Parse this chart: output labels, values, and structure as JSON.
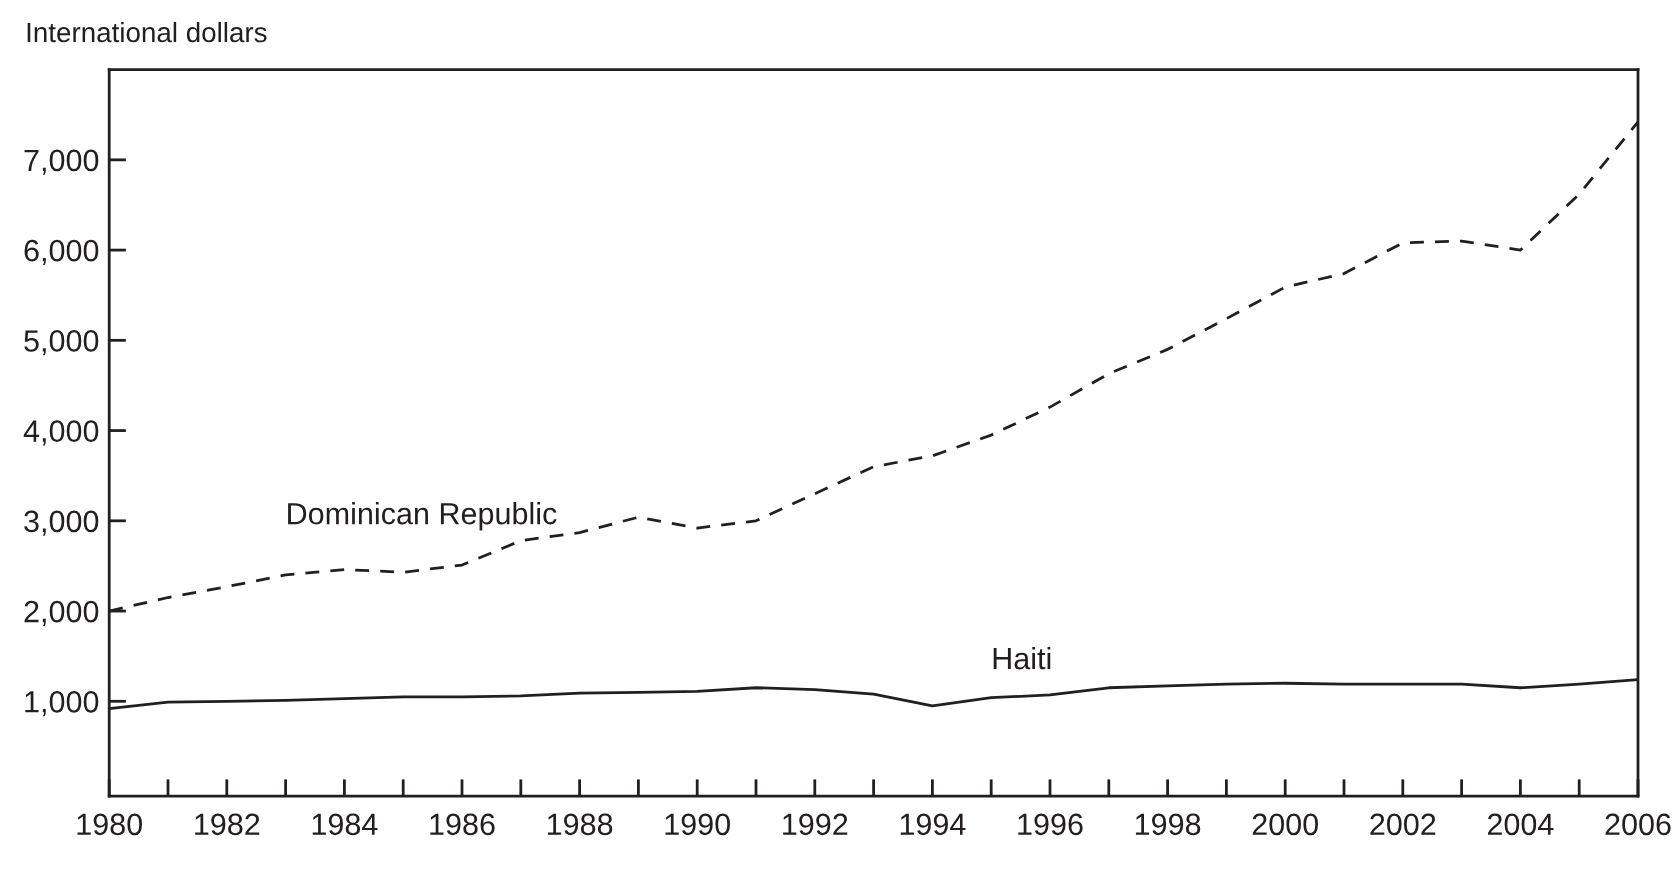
{
  "chart_data": {
    "type": "line",
    "ylabel": "International dollars",
    "x": [
      1980,
      1981,
      1982,
      1983,
      1984,
      1985,
      1986,
      1987,
      1988,
      1989,
      1990,
      1991,
      1992,
      1993,
      1994,
      1995,
      1996,
      1997,
      1998,
      1999,
      2000,
      2001,
      2002,
      2003,
      2004,
      2005,
      2006
    ],
    "series": [
      {
        "name": "Dominican Republic",
        "color": "#231f20",
        "line_style": "dashed",
        "values": [
          2000,
          2150,
          2270,
          2400,
          2460,
          2430,
          2510,
          2780,
          2870,
          3040,
          2920,
          3000,
          3300,
          3600,
          3720,
          3950,
          4260,
          4630,
          4900,
          5240,
          5590,
          5740,
          6080,
          6100,
          6000,
          6620,
          7420
        ]
      },
      {
        "name": "Haiti",
        "color": "#231f20",
        "line_style": "solid",
        "values": [
          920,
          990,
          1000,
          1010,
          1030,
          1050,
          1050,
          1060,
          1090,
          1100,
          1110,
          1150,
          1130,
          1080,
          950,
          1040,
          1070,
          1150,
          1170,
          1190,
          1200,
          1190,
          1190,
          1190,
          1150,
          1190,
          1240
        ]
      }
    ],
    "xlim": [
      1980,
      2006
    ],
    "ylim": [
      -50,
      8000
    ],
    "xticks": [
      1980,
      {
        "value": 1981,
        "label": null
      },
      1982,
      {
        "value": 1983,
        "label": null
      },
      1984,
      {
        "value": 1985,
        "label": null
      },
      1986,
      {
        "value": 1987,
        "label": null
      },
      1988,
      {
        "value": 1989,
        "label": null
      },
      1990,
      {
        "value": 1991,
        "label": null
      },
      1992,
      {
        "value": 1993,
        "label": null
      },
      1994,
      {
        "value": 1995,
        "label": null
      },
      1996,
      {
        "value": 1997,
        "label": null
      },
      1998,
      {
        "value": 1999,
        "label": null
      },
      2000,
      {
        "value": 2001,
        "label": null
      },
      2002,
      {
        "value": 2003,
        "label": null
      },
      2004,
      {
        "value": 2005,
        "label": null
      },
      2006
    ],
    "yticks": [
      {
        "value": 1000,
        "label": "1,000"
      },
      {
        "value": 2000,
        "label": "2,000"
      },
      {
        "value": 3000,
        "label": "3,000"
      },
      {
        "value": 4000,
        "label": "4,000"
      },
      {
        "value": 5000,
        "label": "5,000"
      },
      {
        "value": 6000,
        "label": "6,000"
      },
      {
        "value": 7000,
        "label": "7,000"
      }
    ],
    "grid": false,
    "legend": false
  }
}
